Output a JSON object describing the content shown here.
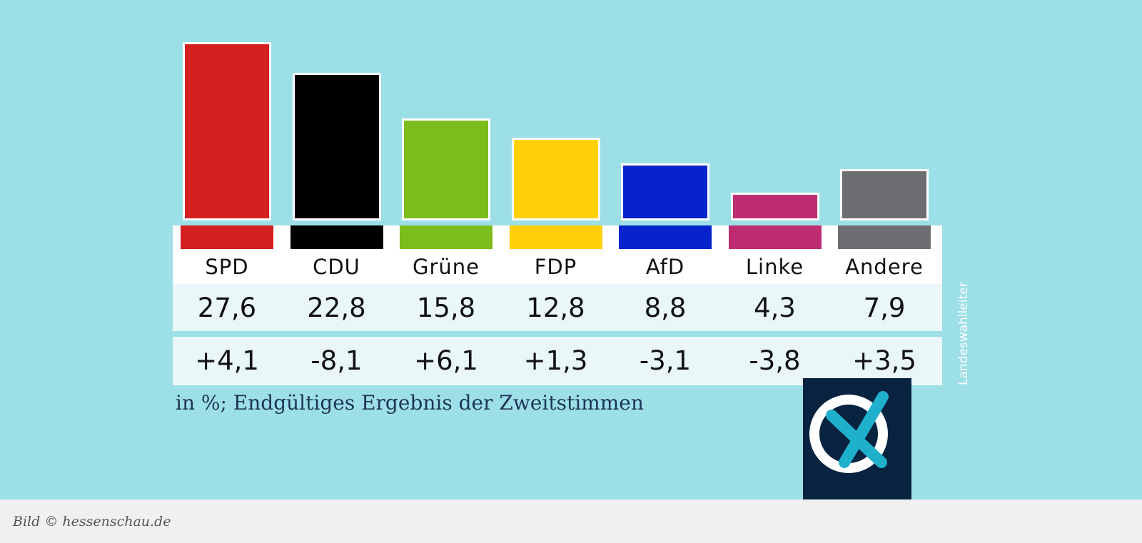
{
  "chart_data": {
    "type": "bar",
    "categories": [
      "SPD",
      "CDU",
      "Grüne",
      "FDP",
      "AfD",
      "Linke",
      "Andere"
    ],
    "values": [
      27.6,
      22.8,
      15.8,
      12.8,
      8.8,
      4.3,
      7.9
    ],
    "value_labels": [
      "27,6",
      "22,8",
      "15,8",
      "12,8",
      "8,8",
      "4,3",
      "7,9"
    ],
    "changes": [
      4.1,
      -8.1,
      6.1,
      1.3,
      -3.1,
      -3.8,
      3.5
    ],
    "change_labels": [
      "+4,1",
      "-8,1",
      "+6,1",
      "+1,3",
      "-3,1",
      "-3,8",
      "+3,5"
    ],
    "colors": [
      "#d52020",
      "#000000",
      "#7bbd1c",
      "#ffd008",
      "#0623cc",
      "#be2c72",
      "#6e6d72"
    ],
    "note": "in %; Endgültiges Ergebnis der Zweitstimmen",
    "source": "Landeswahlleiter",
    "grid": false
  },
  "footer": {
    "credit": "Bild © hessenschau.de"
  },
  "colors": {
    "background": "#9ddfe6",
    "logo_bg": "#07233f",
    "logo_ring": "#ffffff",
    "logo_cross": "#1fb0cc"
  },
  "logo": {
    "icon": "ballot-cross-logo"
  }
}
